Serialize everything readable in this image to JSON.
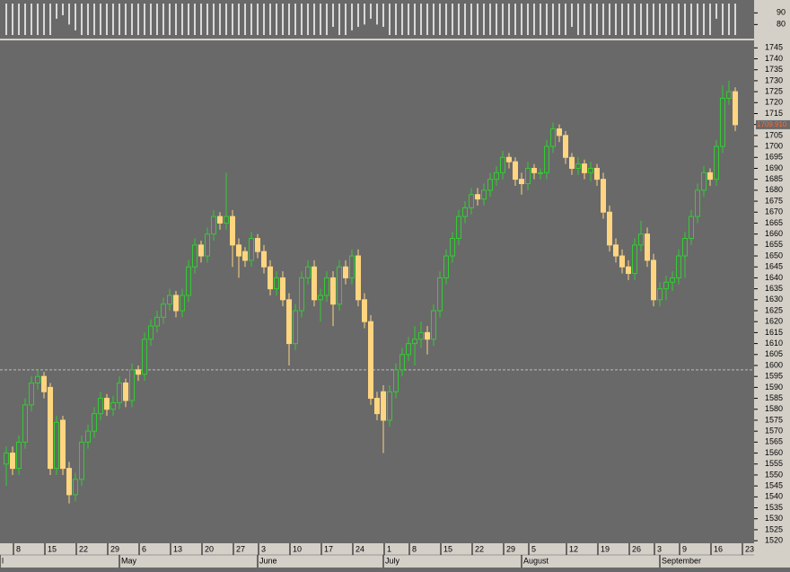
{
  "chart_data": {
    "type": "candlestick",
    "ylim": [
      1518,
      1748
    ],
    "yticks": [
      1520,
      1525,
      1530,
      1535,
      1540,
      1545,
      1550,
      1555,
      1560,
      1565,
      1570,
      1575,
      1580,
      1585,
      1590,
      1595,
      1600,
      1605,
      1610,
      1615,
      1620,
      1625,
      1630,
      1635,
      1640,
      1645,
      1650,
      1655,
      1660,
      1665,
      1670,
      1675,
      1680,
      1685,
      1690,
      1695,
      1700,
      1705,
      1710,
      1715,
      1720,
      1725,
      1730,
      1735,
      1740,
      1745
    ],
    "up_color": "#33cc33",
    "down_color": "#ffd580",
    "reference_line": 1598,
    "last_price": {
      "value": 1709.91,
      "label": "1709.910"
    },
    "xticks": [
      {
        "value": 2,
        "label": "8"
      },
      {
        "value": 7,
        "label": "15"
      },
      {
        "value": 12,
        "label": "22"
      },
      {
        "value": 17,
        "label": "29"
      },
      {
        "value": 22,
        "label": "6"
      },
      {
        "value": 27,
        "label": "13"
      },
      {
        "value": 32,
        "label": "20"
      },
      {
        "value": 37,
        "label": "27"
      },
      {
        "value": 41,
        "label": "3"
      },
      {
        "value": 46,
        "label": "10"
      },
      {
        "value": 51,
        "label": "17"
      },
      {
        "value": 56,
        "label": "24"
      },
      {
        "value": 61,
        "label": "1"
      },
      {
        "value": 65,
        "label": "8"
      },
      {
        "value": 70,
        "label": "15"
      },
      {
        "value": 75,
        "label": "22"
      },
      {
        "value": 80,
        "label": "29"
      },
      {
        "value": 84,
        "label": "5"
      },
      {
        "value": 90,
        "label": "12"
      },
      {
        "value": 95,
        "label": "19"
      },
      {
        "value": 100,
        "label": "26"
      },
      {
        "value": 104,
        "label": "3"
      },
      {
        "value": 108,
        "label": "9"
      },
      {
        "value": 113,
        "label": "16"
      },
      {
        "value": 118,
        "label": "23"
      }
    ],
    "month_ticks": [
      {
        "value": -1,
        "label": "l"
      },
      {
        "value": 18,
        "label": "May"
      },
      {
        "value": 40,
        "label": "June"
      },
      {
        "value": 60,
        "label": "July"
      },
      {
        "value": 82,
        "label": "August"
      },
      {
        "value": 104,
        "label": "September"
      }
    ],
    "open": [
      1555,
      1560,
      1553,
      1565,
      1582,
      1592,
      1595,
      1590,
      1553,
      1575,
      1553,
      1541,
      1548,
      1565,
      1570,
      1578,
      1585,
      1580,
      1583,
      1592,
      1584,
      1598,
      1596,
      1612,
      1618,
      1622,
      1628,
      1632,
      1625,
      1632,
      1645,
      1655,
      1650,
      1660,
      1668,
      1665,
      1668,
      1655,
      1652,
      1648,
      1658,
      1652,
      1645,
      1635,
      1640,
      1630,
      1610,
      1625,
      1640,
      1645,
      1630,
      1632,
      1640,
      1628,
      1645,
      1640,
      1650,
      1630,
      1620,
      1585,
      1588,
      1575,
      1588,
      1598,
      1605,
      1610,
      1612,
      1615,
      1612,
      1625,
      1640,
      1650,
      1658,
      1668,
      1672,
      1678,
      1676,
      1680,
      1685,
      1688,
      1695,
      1693,
      1685,
      1683,
      1690,
      1688,
      1688,
      1700,
      1708,
      1705,
      1695,
      1690,
      1692,
      1688,
      1690,
      1685,
      1670,
      1655,
      1650,
      1645,
      1642,
      1655,
      1660,
      1648,
      1630,
      1635,
      1638,
      1640,
      1650,
      1658,
      1668,
      1680,
      1688,
      1685,
      1700,
      1722,
      1725
    ],
    "high": [
      1563,
      1563,
      1568,
      1585,
      1595,
      1598,
      1597,
      1592,
      1577,
      1577,
      1556,
      1551,
      1568,
      1573,
      1581,
      1588,
      1587,
      1586,
      1595,
      1594,
      1601,
      1600,
      1615,
      1621,
      1625,
      1631,
      1635,
      1634,
      1635,
      1648,
      1658,
      1657,
      1663,
      1671,
      1670,
      1688,
      1671,
      1658,
      1654,
      1661,
      1660,
      1655,
      1648,
      1643,
      1643,
      1633,
      1628,
      1643,
      1648,
      1648,
      1635,
      1643,
      1643,
      1648,
      1648,
      1653,
      1653,
      1633,
      1623,
      1588,
      1591,
      1591,
      1601,
      1608,
      1613,
      1618,
      1620,
      1618,
      1628,
      1643,
      1653,
      1661,
      1671,
      1675,
      1681,
      1681,
      1683,
      1688,
      1691,
      1698,
      1697,
      1695,
      1688,
      1693,
      1692,
      1690,
      1703,
      1711,
      1710,
      1707,
      1697,
      1695,
      1694,
      1693,
      1692,
      1688,
      1673,
      1658,
      1653,
      1648,
      1658,
      1666,
      1663,
      1651,
      1638,
      1641,
      1643,
      1653,
      1661,
      1671,
      1683,
      1691,
      1690,
      1703,
      1728,
      1730,
      1727
    ],
    "low": [
      1545,
      1550,
      1550,
      1562,
      1579,
      1589,
      1585,
      1550,
      1550,
      1550,
      1537,
      1538,
      1545,
      1562,
      1567,
      1575,
      1577,
      1577,
      1580,
      1581,
      1581,
      1593,
      1593,
      1609,
      1615,
      1619,
      1625,
      1622,
      1622,
      1629,
      1642,
      1647,
      1647,
      1657,
      1662,
      1662,
      1645,
      1640,
      1645,
      1645,
      1649,
      1642,
      1632,
      1632,
      1627,
      1600,
      1607,
      1622,
      1637,
      1627,
      1620,
      1629,
      1618,
      1625,
      1637,
      1637,
      1627,
      1617,
      1582,
      1575,
      1560,
      1572,
      1585,
      1595,
      1602,
      1600,
      1608,
      1605,
      1609,
      1622,
      1637,
      1647,
      1655,
      1665,
      1669,
      1673,
      1673,
      1677,
      1682,
      1685,
      1690,
      1682,
      1678,
      1680,
      1685,
      1685,
      1685,
      1697,
      1702,
      1692,
      1687,
      1687,
      1685,
      1684,
      1682,
      1667,
      1652,
      1647,
      1642,
      1639,
      1639,
      1652,
      1645,
      1627,
      1627,
      1630,
      1634,
      1637,
      1640,
      1655,
      1665,
      1677,
      1682,
      1682,
      1697,
      1719,
      1707
    ],
    "close": [
      1560,
      1553,
      1565,
      1582,
      1592,
      1595,
      1588,
      1553,
      1574,
      1553,
      1541,
      1548,
      1565,
      1570,
      1578,
      1585,
      1580,
      1583,
      1592,
      1584,
      1598,
      1596,
      1612,
      1618,
      1622,
      1628,
      1632,
      1625,
      1632,
      1645,
      1655,
      1650,
      1660,
      1668,
      1665,
      1668,
      1655,
      1650,
      1648,
      1658,
      1652,
      1645,
      1635,
      1640,
      1630,
      1610,
      1625,
      1640,
      1645,
      1630,
      1632,
      1640,
      1628,
      1645,
      1640,
      1650,
      1630,
      1620,
      1585,
      1578,
      1575,
      1588,
      1598,
      1605,
      1610,
      1612,
      1615,
      1612,
      1625,
      1640,
      1650,
      1658,
      1668,
      1672,
      1678,
      1676,
      1680,
      1685,
      1688,
      1695,
      1693,
      1685,
      1683,
      1690,
      1688,
      1688,
      1700,
      1708,
      1705,
      1695,
      1690,
      1692,
      1688,
      1690,
      1685,
      1670,
      1655,
      1650,
      1645,
      1642,
      1655,
      1660,
      1648,
      1630,
      1635,
      1638,
      1640,
      1650,
      1658,
      1668,
      1680,
      1688,
      1685,
      1700,
      1722,
      1725,
      1709.91
    ],
    "top_panel": {
      "ylim": [
        71,
        98
      ],
      "yticks": [
        90,
        80
      ],
      "values": [
        71,
        71,
        71,
        71,
        71,
        71,
        71,
        71,
        85,
        88,
        80,
        75,
        71,
        71,
        71,
        71,
        71,
        71,
        71,
        71,
        71,
        71,
        71,
        71,
        71,
        71,
        71,
        71,
        71,
        71,
        71,
        71,
        71,
        71,
        71,
        71,
        71,
        71,
        71,
        71,
        71,
        71,
        71,
        71,
        71,
        71,
        71,
        71,
        71,
        71,
        71,
        71,
        78,
        71,
        71,
        75,
        78,
        80,
        85,
        80,
        78,
        71,
        71,
        71,
        71,
        71,
        71,
        71,
        71,
        71,
        71,
        71,
        71,
        71,
        71,
        71,
        71,
        71,
        71,
        71,
        71,
        71,
        71,
        71,
        71,
        71,
        71,
        71,
        71,
        71,
        78,
        71,
        71,
        71,
        71,
        71,
        71,
        71,
        71,
        71,
        71,
        71,
        71,
        71,
        71,
        71,
        71,
        71,
        71,
        71,
        71,
        71,
        71,
        85,
        71,
        71,
        71
      ]
    }
  }
}
